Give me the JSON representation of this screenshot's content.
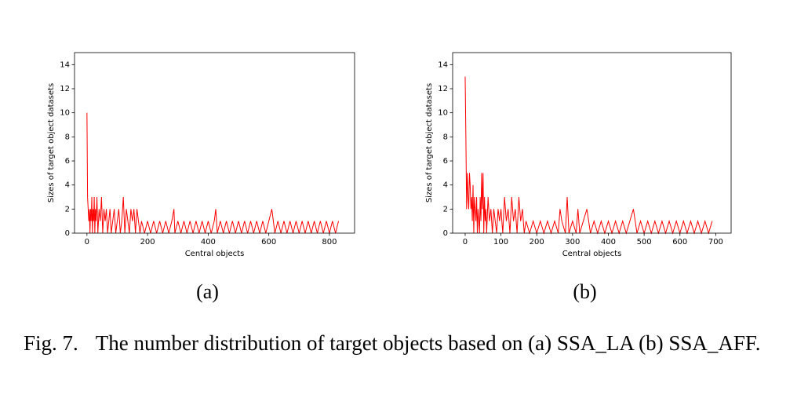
{
  "chart_data": [
    {
      "type": "line",
      "panel_label": "(a)",
      "xlabel": "Central objects",
      "ylabel": "Sizes of target object datasets",
      "xlim": [
        -41,
        883
      ],
      "ylim": [
        0,
        15
      ],
      "xticks": [
        0,
        200,
        400,
        600,
        800
      ],
      "yticks": [
        0,
        2,
        4,
        6,
        8,
        10,
        12,
        14
      ],
      "series": [
        {
          "color": "#ff0000",
          "x": [
            0,
            2,
            4,
            6,
            8,
            10,
            12,
            14,
            16,
            18,
            20,
            22,
            24,
            26,
            28,
            30,
            33,
            36,
            40,
            44,
            48,
            52,
            56,
            60,
            64,
            68,
            72,
            76,
            80,
            85,
            90,
            95,
            100,
            105,
            110,
            115,
            120,
            125,
            130,
            135,
            140,
            145,
            150,
            155,
            160,
            165,
            170,
            175,
            180,
            190,
            200,
            210,
            220,
            230,
            240,
            250,
            260,
            270,
            280,
            287,
            290,
            300,
            310,
            320,
            330,
            340,
            350,
            360,
            370,
            380,
            390,
            400,
            410,
            420,
            425,
            430,
            440,
            450,
            460,
            470,
            480,
            490,
            500,
            510,
            520,
            530,
            540,
            550,
            560,
            570,
            580,
            590,
            600,
            610,
            620,
            630,
            640,
            650,
            660,
            670,
            680,
            690,
            700,
            710,
            720,
            730,
            740,
            750,
            760,
            770,
            780,
            790,
            800,
            810,
            820,
            830
          ],
          "values": [
            10,
            3,
            2,
            1,
            2,
            0,
            2,
            1,
            3,
            0,
            2,
            1,
            3,
            0,
            2,
            1,
            3,
            0,
            2,
            1,
            3,
            0,
            2,
            1,
            2,
            0,
            1,
            2,
            0,
            1,
            2,
            0,
            1,
            2,
            0,
            1,
            3,
            0,
            2,
            1,
            0,
            2,
            1,
            2,
            0,
            2,
            1,
            0,
            1,
            0,
            1,
            0,
            1,
            0,
            1,
            0,
            1,
            0,
            1,
            2,
            0,
            1,
            0,
            1,
            0,
            1,
            0,
            1,
            0,
            1,
            0,
            1,
            0,
            1,
            2,
            0,
            1,
            0,
            1,
            0,
            1,
            0,
            1,
            0,
            1,
            0,
            1,
            0,
            1,
            0,
            1,
            0,
            1,
            2,
            0,
            1,
            0,
            1,
            0,
            1,
            0,
            1,
            0,
            1,
            0,
            1,
            0,
            1,
            0,
            1,
            0,
            1,
            0,
            1,
            0,
            1
          ]
        }
      ]
    },
    {
      "type": "line",
      "panel_label": "(b)",
      "xlabel": "Central objects",
      "ylabel": "Sizes of target object datasets",
      "xlim": [
        -35,
        743
      ],
      "ylim": [
        0,
        15
      ],
      "xticks": [
        0,
        100,
        200,
        300,
        400,
        500,
        600,
        700
      ],
      "yticks": [
        0,
        2,
        4,
        6,
        8,
        10,
        12,
        14
      ],
      "series": [
        {
          "color": "#ff0000",
          "x": [
            0,
            2,
            4,
            6,
            8,
            10,
            12,
            14,
            16,
            18,
            20,
            22,
            24,
            26,
            28,
            30,
            32,
            34,
            36,
            38,
            40,
            42,
            44,
            46,
            48,
            50,
            52,
            54,
            56,
            58,
            60,
            64,
            68,
            72,
            76,
            80,
            84,
            88,
            92,
            96,
            100,
            105,
            110,
            115,
            120,
            125,
            130,
            135,
            140,
            145,
            150,
            155,
            160,
            165,
            170,
            180,
            190,
            200,
            210,
            220,
            230,
            240,
            250,
            260,
            265,
            270,
            280,
            285,
            290,
            300,
            310,
            315,
            320,
            330,
            340,
            350,
            360,
            370,
            380,
            390,
            400,
            410,
            420,
            430,
            440,
            450,
            460,
            470,
            480,
            490,
            500,
            510,
            520,
            530,
            540,
            550,
            560,
            570,
            580,
            590,
            600,
            610,
            620,
            630,
            640,
            650,
            660,
            670,
            680,
            690
          ],
          "values": [
            13,
            8,
            2,
            5,
            3,
            2,
            5,
            4,
            2,
            3,
            1,
            4,
            0,
            3,
            2,
            1,
            3,
            0,
            2,
            1,
            0,
            3,
            1,
            5,
            2,
            5,
            0,
            3,
            1,
            2,
            0,
            3,
            1,
            2,
            0,
            2,
            1,
            0,
            2,
            1,
            2,
            0,
            3,
            1,
            2,
            0,
            3,
            1,
            2,
            0,
            3,
            1,
            2,
            0,
            1,
            0,
            1,
            0,
            1,
            0,
            1,
            0,
            1,
            0,
            2,
            1,
            0,
            3,
            0,
            1,
            0,
            2,
            0,
            1,
            2,
            0,
            1,
            0,
            1,
            0,
            1,
            0,
            1,
            0,
            1,
            0,
            1,
            2,
            0,
            1,
            0,
            1,
            0,
            1,
            0,
            1,
            0,
            1,
            0,
            1,
            0,
            1,
            0,
            1,
            0,
            1,
            0,
            1,
            0,
            1
          ]
        }
      ]
    }
  ],
  "caption": {
    "label": "Fig. 7.",
    "text": "The number distribution of target objects based on (a) SSA_LA (b) SSA_AFF."
  }
}
